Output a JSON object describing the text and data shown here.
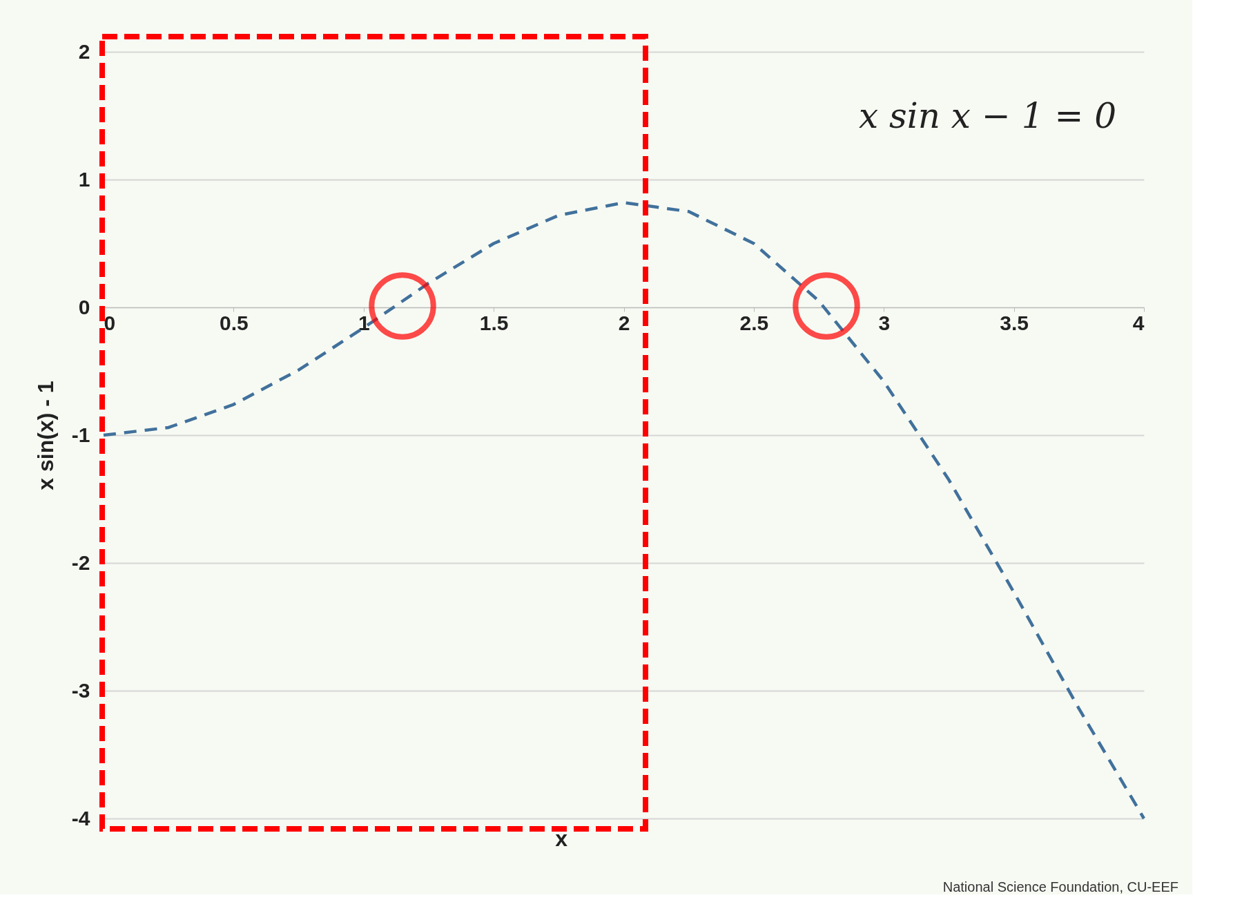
{
  "chart_data": {
    "type": "line",
    "xlabel": "x",
    "ylabel": "x sin(x) - 1",
    "x": [
      0,
      0.25,
      0.5,
      0.75,
      1,
      1.25,
      1.5,
      1.75,
      2,
      2.25,
      2.5,
      2.75,
      3,
      3.25,
      3.5,
      3.75,
      4
    ],
    "series": [
      {
        "color": "#41719c",
        "values": [
          -1,
          -0.94,
          -0.76,
          -0.49,
          -0.16,
          0.19,
          0.5,
          0.72,
          0.82,
          0.75,
          0.5,
          0.05,
          -0.58,
          -1.35,
          -2.23,
          -3.14,
          -4
        ]
      }
    ],
    "xlim": [
      0,
      4
    ],
    "xticks": [
      0,
      0.5,
      1,
      1.5,
      2,
      2.5,
      3,
      3.5,
      4
    ],
    "ylim": [
      -4,
      2
    ],
    "yticks": [
      -4,
      -3,
      -2,
      -1,
      0,
      1,
      2
    ],
    "grid": "y",
    "line_style": "dashed",
    "marker": "none",
    "annotations": [
      "x sin x − 1 = 0",
      "National Science Foundation, CU-EEF"
    ]
  }
}
